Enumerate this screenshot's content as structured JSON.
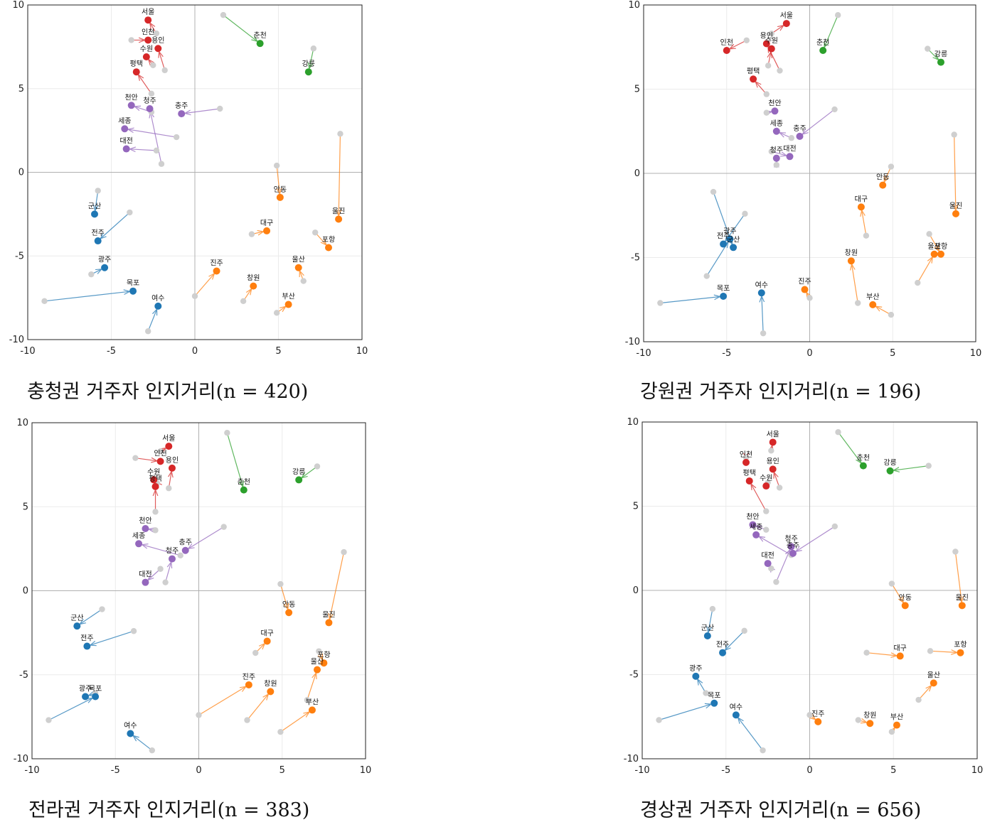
{
  "colors": {
    "수도권": "#d62728",
    "강원권": "#2ca02c",
    "충청권": "#9467bd",
    "전라권": "#1f77b4",
    "경상권": "#ff7f0e",
    "reference": "#cfcfcf"
  },
  "reference_points": {
    "서울": [
      -2.3,
      8.3
    ],
    "인천": [
      -3.8,
      7.9
    ],
    "수원": [
      -2.5,
      6.4
    ],
    "용인": [
      -1.8,
      6.1
    ],
    "평택": [
      -2.6,
      4.7
    ],
    "춘천": [
      1.7,
      9.4
    ],
    "강릉": [
      7.1,
      7.4
    ],
    "천안": [
      -2.6,
      3.6
    ],
    "청주": [
      -2.0,
      0.5
    ],
    "충주": [
      1.5,
      3.8
    ],
    "세종": [
      -1.1,
      2.1
    ],
    "대전": [
      -2.3,
      1.3
    ],
    "군산": [
      -5.8,
      -1.1
    ],
    "전주": [
      -3.9,
      -2.4
    ],
    "광주": [
      -6.2,
      -6.1
    ],
    "목포": [
      -9.0,
      -7.7
    ],
    "여수": [
      -2.8,
      -9.5
    ],
    "안동": [
      4.9,
      0.4
    ],
    "울진": [
      8.7,
      2.3
    ],
    "대구": [
      3.4,
      -3.7
    ],
    "포항": [
      7.2,
      -3.6
    ],
    "울산": [
      6.5,
      -6.5
    ],
    "진주": [
      0.0,
      -7.4
    ],
    "창원": [
      2.9,
      -7.7
    ],
    "부산": [
      4.9,
      -8.4
    ]
  },
  "chart_data": [
    {
      "type": "scatter",
      "caption": "충청권 거주자 인지거리(n = 420)",
      "xlim": [
        -10,
        10
      ],
      "ylim": [
        -10,
        10
      ],
      "xticks": [
        -10,
        -5,
        0,
        5,
        10
      ],
      "yticks": [
        -10,
        -5,
        0,
        5,
        10
      ],
      "grid": true,
      "points": [
        {
          "name": "서울",
          "region": "수도권",
          "x": -2.8,
          "y": 9.1
        },
        {
          "name": "인천",
          "region": "수도권",
          "x": -2.8,
          "y": 7.9
        },
        {
          "name": "용인",
          "region": "수도권",
          "x": -2.2,
          "y": 7.4
        },
        {
          "name": "수원",
          "region": "수도권",
          "x": -2.9,
          "y": 6.9
        },
        {
          "name": "평택",
          "region": "수도권",
          "x": -3.5,
          "y": 6.0
        },
        {
          "name": "춘천",
          "region": "강원권",
          "x": 3.9,
          "y": 7.7
        },
        {
          "name": "강릉",
          "region": "강원권",
          "x": 6.8,
          "y": 6.0
        },
        {
          "name": "천안",
          "region": "충청권",
          "x": -3.8,
          "y": 4.0
        },
        {
          "name": "청주",
          "region": "충청권",
          "x": -2.7,
          "y": 3.8
        },
        {
          "name": "충주",
          "region": "충청권",
          "x": -0.8,
          "y": 3.5
        },
        {
          "name": "세종",
          "region": "충청권",
          "x": -4.2,
          "y": 2.6
        },
        {
          "name": "대전",
          "region": "충청권",
          "x": -4.1,
          "y": 1.4
        },
        {
          "name": "군산",
          "region": "전라권",
          "x": -6.0,
          "y": -2.5
        },
        {
          "name": "전주",
          "region": "전라권",
          "x": -5.8,
          "y": -4.1
        },
        {
          "name": "광주",
          "region": "전라권",
          "x": -5.4,
          "y": -5.7
        },
        {
          "name": "목포",
          "region": "전라권",
          "x": -3.7,
          "y": -7.1
        },
        {
          "name": "여수",
          "region": "전라권",
          "x": -2.2,
          "y": -8.0
        },
        {
          "name": "안동",
          "region": "경상권",
          "x": 5.1,
          "y": -1.5
        },
        {
          "name": "울진",
          "region": "경상권",
          "x": 8.6,
          "y": -2.8
        },
        {
          "name": "대구",
          "region": "경상권",
          "x": 4.3,
          "y": -3.5
        },
        {
          "name": "포항",
          "region": "경상권",
          "x": 8.0,
          "y": -4.5
        },
        {
          "name": "울산",
          "region": "경상권",
          "x": 6.2,
          "y": -5.7
        },
        {
          "name": "진주",
          "region": "경상권",
          "x": 1.3,
          "y": -5.9
        },
        {
          "name": "창원",
          "region": "경상권",
          "x": 3.5,
          "y": -6.8
        },
        {
          "name": "부산",
          "region": "경상권",
          "x": 5.6,
          "y": -7.9
        }
      ]
    },
    {
      "type": "scatter",
      "caption": "강원권 거주자 인지거리(n = 196)",
      "xlim": [
        -10,
        10
      ],
      "ylim": [
        -10,
        10
      ],
      "xticks": [
        -10,
        -5,
        0,
        5,
        10
      ],
      "yticks": [
        -10,
        -5,
        0,
        5,
        10
      ],
      "grid": true,
      "points": [
        {
          "name": "서울",
          "region": "수도권",
          "x": -1.4,
          "y": 8.9
        },
        {
          "name": "용인",
          "region": "수도권",
          "x": -2.6,
          "y": 7.7
        },
        {
          "name": "인천",
          "region": "수도권",
          "x": -5.0,
          "y": 7.3
        },
        {
          "name": "수원",
          "region": "수도권",
          "x": -2.3,
          "y": 7.4
        },
        {
          "name": "평택",
          "region": "수도권",
          "x": -3.4,
          "y": 5.6
        },
        {
          "name": "춘천",
          "region": "강원권",
          "x": 0.8,
          "y": 7.3
        },
        {
          "name": "강릉",
          "region": "강원권",
          "x": 7.9,
          "y": 6.6
        },
        {
          "name": "천안",
          "region": "충청권",
          "x": -2.1,
          "y": 3.7
        },
        {
          "name": "충주",
          "region": "충청권",
          "x": -0.6,
          "y": 2.2
        },
        {
          "name": "세종",
          "region": "충청권",
          "x": -2.0,
          "y": 2.5
        },
        {
          "name": "청주",
          "region": "충청권",
          "x": -2.0,
          "y": 0.9
        },
        {
          "name": "대전",
          "region": "충청권",
          "x": -1.2,
          "y": 1.0
        },
        {
          "name": "광주",
          "region": "전라권",
          "x": -4.8,
          "y": -3.9
        },
        {
          "name": "전주",
          "region": "전라권",
          "x": -5.2,
          "y": -4.2
        },
        {
          "name": "군산",
          "region": "전라권",
          "x": -4.6,
          "y": -4.4
        },
        {
          "name": "목포",
          "region": "전라권",
          "x": -5.2,
          "y": -7.3
        },
        {
          "name": "여수",
          "region": "전라권",
          "x": -2.9,
          "y": -7.1
        },
        {
          "name": "안동",
          "region": "경상권",
          "x": 4.4,
          "y": -0.7
        },
        {
          "name": "대구",
          "region": "경상권",
          "x": 3.1,
          "y": -2.0
        },
        {
          "name": "울진",
          "region": "경상권",
          "x": 8.8,
          "y": -2.4
        },
        {
          "name": "울산",
          "region": "경상권",
          "x": 7.5,
          "y": -4.8
        },
        {
          "name": "포항",
          "region": "경상권",
          "x": 7.9,
          "y": -4.8
        },
        {
          "name": "창원",
          "region": "경상권",
          "x": 2.5,
          "y": -5.2
        },
        {
          "name": "진주",
          "region": "경상권",
          "x": -0.3,
          "y": -6.9
        },
        {
          "name": "부산",
          "region": "경상권",
          "x": 3.8,
          "y": -7.8
        }
      ]
    },
    {
      "type": "scatter",
      "caption": "전라권 거주자 인지거리(n = 383)",
      "xlim": [
        -10,
        10
      ],
      "ylim": [
        -10,
        10
      ],
      "xticks": [
        -10,
        -5,
        0,
        5,
        10
      ],
      "yticks": [
        -10,
        -5,
        0,
        5,
        10
      ],
      "grid": true,
      "points": [
        {
          "name": "서울",
          "region": "수도권",
          "x": -1.8,
          "y": 8.6
        },
        {
          "name": "인천",
          "region": "수도권",
          "x": -2.3,
          "y": 7.7
        },
        {
          "name": "용인",
          "region": "수도권",
          "x": -1.6,
          "y": 7.3
        },
        {
          "name": "수원",
          "region": "수도권",
          "x": -2.7,
          "y": 6.6
        },
        {
          "name": "평택",
          "region": "수도권",
          "x": -2.6,
          "y": 6.2
        },
        {
          "name": "춘천",
          "region": "강원권",
          "x": 2.7,
          "y": 6.0
        },
        {
          "name": "강릉",
          "region": "강원권",
          "x": 6.0,
          "y": 6.6
        },
        {
          "name": "천안",
          "region": "충청권",
          "x": -3.2,
          "y": 3.7
        },
        {
          "name": "세종",
          "region": "충청권",
          "x": -3.6,
          "y": 2.8
        },
        {
          "name": "충주",
          "region": "충청권",
          "x": -0.8,
          "y": 2.4
        },
        {
          "name": "청주",
          "region": "충청권",
          "x": -1.6,
          "y": 1.9
        },
        {
          "name": "대전",
          "region": "충청권",
          "x": -3.2,
          "y": 0.5
        },
        {
          "name": "군산",
          "region": "전라권",
          "x": -7.3,
          "y": -2.1
        },
        {
          "name": "전주",
          "region": "전라권",
          "x": -6.7,
          "y": -3.3
        },
        {
          "name": "광주",
          "region": "전라권",
          "x": -6.8,
          "y": -6.3
        },
        {
          "name": "목포",
          "region": "전라권",
          "x": -6.2,
          "y": -6.3
        },
        {
          "name": "여수",
          "region": "전라권",
          "x": -4.1,
          "y": -8.5
        },
        {
          "name": "안동",
          "region": "경상권",
          "x": 5.4,
          "y": -1.3
        },
        {
          "name": "울진",
          "region": "경상권",
          "x": 7.8,
          "y": -1.9
        },
        {
          "name": "대구",
          "region": "경상권",
          "x": 4.1,
          "y": -3.0
        },
        {
          "name": "포항",
          "region": "경상권",
          "x": 7.5,
          "y": -4.3
        },
        {
          "name": "울산",
          "region": "경상권",
          "x": 7.1,
          "y": -4.7
        },
        {
          "name": "진주",
          "region": "경상권",
          "x": 3.0,
          "y": -5.6
        },
        {
          "name": "창원",
          "region": "경상권",
          "x": 4.3,
          "y": -6.0
        },
        {
          "name": "부산",
          "region": "경상권",
          "x": 6.8,
          "y": -7.1
        }
      ]
    },
    {
      "type": "scatter",
      "caption": "경상권 거주자 인지거리(n = 656)",
      "xlim": [
        -10,
        10
      ],
      "ylim": [
        -10,
        10
      ],
      "xticks": [
        -10,
        -5,
        0,
        5,
        10
      ],
      "yticks": [
        -10,
        -5,
        0,
        5,
        10
      ],
      "grid": true,
      "points": [
        {
          "name": "서울",
          "region": "수도권",
          "x": -2.2,
          "y": 8.8
        },
        {
          "name": "인천",
          "region": "수도권",
          "x": -3.8,
          "y": 7.6
        },
        {
          "name": "용인",
          "region": "수도권",
          "x": -2.2,
          "y": 7.2
        },
        {
          "name": "평택",
          "region": "수도권",
          "x": -3.6,
          "y": 6.5
        },
        {
          "name": "수원",
          "region": "수도권",
          "x": -2.6,
          "y": 6.2
        },
        {
          "name": "춘천",
          "region": "강원권",
          "x": 3.2,
          "y": 7.4
        },
        {
          "name": "강릉",
          "region": "강원권",
          "x": 4.8,
          "y": 7.1
        },
        {
          "name": "천안",
          "region": "충청권",
          "x": -3.4,
          "y": 3.9
        },
        {
          "name": "세종",
          "region": "충청권",
          "x": -3.2,
          "y": 3.3
        },
        {
          "name": "청주",
          "region": "충청권",
          "x": -1.1,
          "y": 2.6
        },
        {
          "name": "충주",
          "region": "충청권",
          "x": -1.0,
          "y": 2.2
        },
        {
          "name": "대전",
          "region": "충청권",
          "x": -2.5,
          "y": 1.6
        },
        {
          "name": "군산",
          "region": "전라권",
          "x": -6.1,
          "y": -2.7
        },
        {
          "name": "전주",
          "region": "전라권",
          "x": -5.2,
          "y": -3.7
        },
        {
          "name": "광주",
          "region": "전라권",
          "x": -6.8,
          "y": -5.1
        },
        {
          "name": "목포",
          "region": "전라권",
          "x": -5.7,
          "y": -6.7
        },
        {
          "name": "여수",
          "region": "전라권",
          "x": -4.4,
          "y": -7.4
        },
        {
          "name": "안동",
          "region": "경상권",
          "x": 5.7,
          "y": -0.9
        },
        {
          "name": "울진",
          "region": "경상권",
          "x": 9.1,
          "y": -0.9
        },
        {
          "name": "대구",
          "region": "경상권",
          "x": 5.4,
          "y": -3.9
        },
        {
          "name": "포항",
          "region": "경상권",
          "x": 9.0,
          "y": -3.7
        },
        {
          "name": "울산",
          "region": "경상권",
          "x": 7.4,
          "y": -5.5
        },
        {
          "name": "진주",
          "region": "경상권",
          "x": 0.5,
          "y": -7.8
        },
        {
          "name": "창원",
          "region": "경상권",
          "x": 3.6,
          "y": -7.9
        },
        {
          "name": "부산",
          "region": "경상권",
          "x": 5.2,
          "y": -8.0
        }
      ]
    }
  ]
}
